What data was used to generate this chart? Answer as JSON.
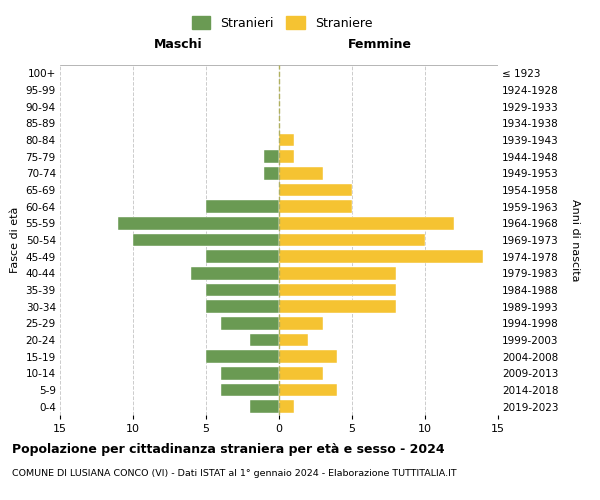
{
  "age_groups": [
    "0-4",
    "5-9",
    "10-14",
    "15-19",
    "20-24",
    "25-29",
    "30-34",
    "35-39",
    "40-44",
    "45-49",
    "50-54",
    "55-59",
    "60-64",
    "65-69",
    "70-74",
    "75-79",
    "80-84",
    "85-89",
    "90-94",
    "95-99",
    "100+"
  ],
  "birth_years": [
    "2019-2023",
    "2014-2018",
    "2009-2013",
    "2004-2008",
    "1999-2003",
    "1994-1998",
    "1989-1993",
    "1984-1988",
    "1979-1983",
    "1974-1978",
    "1969-1973",
    "1964-1968",
    "1959-1963",
    "1954-1958",
    "1949-1953",
    "1944-1948",
    "1939-1943",
    "1934-1938",
    "1929-1933",
    "1924-1928",
    "≤ 1923"
  ],
  "males": [
    2,
    4,
    4,
    5,
    2,
    4,
    5,
    5,
    6,
    5,
    10,
    11,
    5,
    0,
    1,
    1,
    0,
    0,
    0,
    0,
    0
  ],
  "females": [
    1,
    4,
    3,
    4,
    2,
    3,
    8,
    8,
    8,
    14,
    10,
    12,
    5,
    5,
    3,
    1,
    1,
    0,
    0,
    0,
    0
  ],
  "male_color": "#6a9a53",
  "female_color": "#f5c332",
  "background_color": "#ffffff",
  "grid_color": "#cccccc",
  "title": "Popolazione per cittadinanza straniera per età e sesso - 2024",
  "subtitle": "COMUNE DI LUSIANA CONCO (VI) - Dati ISTAT al 1° gennaio 2024 - Elaborazione TUTTITALIA.IT",
  "legend_male": "Stranieri",
  "legend_female": "Straniere",
  "xlim": 15,
  "xlabel_left": "Maschi",
  "xlabel_right": "Femmine",
  "ylabel_left": "Fasce di età",
  "ylabel_right": "Anni di nascita"
}
